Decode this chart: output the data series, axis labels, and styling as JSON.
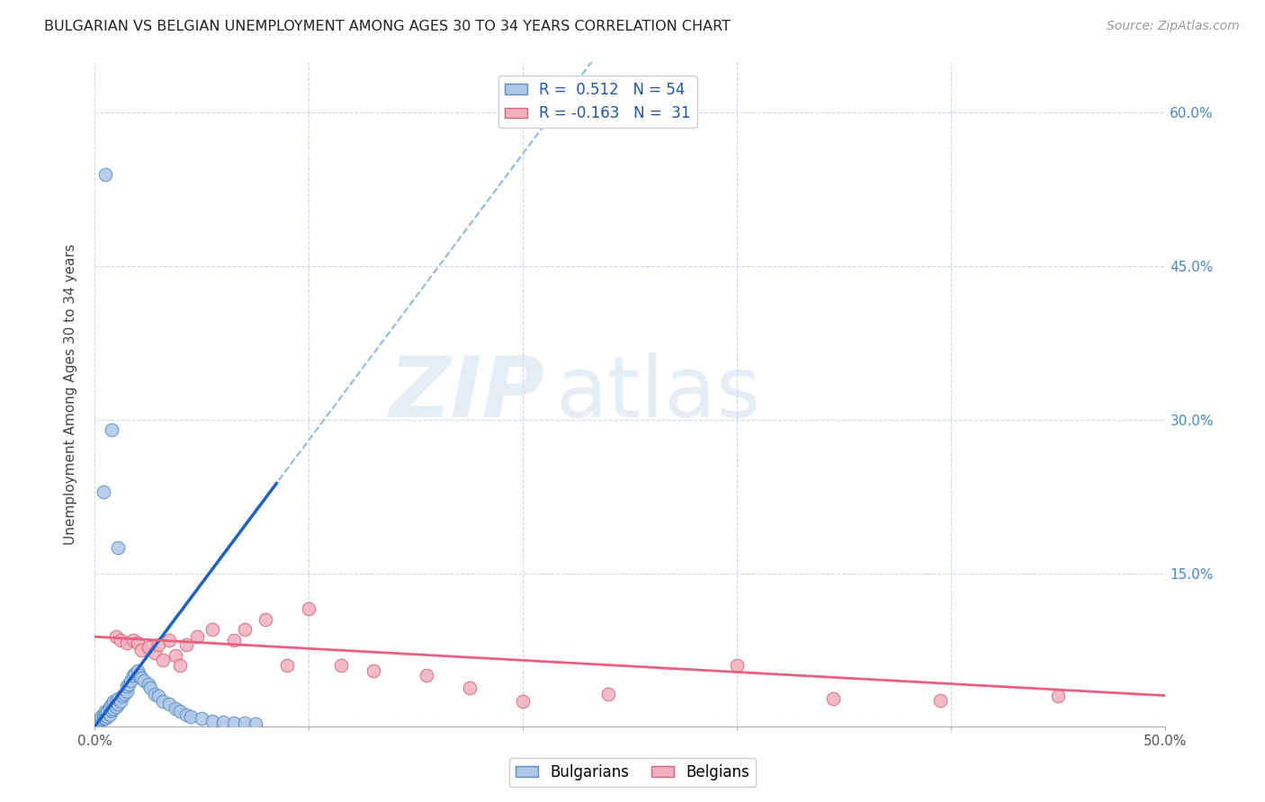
{
  "title": "BULGARIAN VS BELGIAN UNEMPLOYMENT AMONG AGES 30 TO 34 YEARS CORRELATION CHART",
  "source": "Source: ZipAtlas.com",
  "ylabel": "Unemployment Among Ages 30 to 34 years",
  "watermark_zip": "ZIP",
  "watermark_atlas": "atlas",
  "bg_color": "#ffffff",
  "grid_color": "#c8d8e8",
  "xlim": [
    0.0,
    0.5
  ],
  "ylim": [
    0.0,
    0.65
  ],
  "xticks": [
    0.0,
    0.1,
    0.2,
    0.3,
    0.4,
    0.5
  ],
  "yticks": [
    0.0,
    0.15,
    0.3,
    0.45,
    0.6
  ],
  "right_ytick_labels": [
    "",
    "15.0%",
    "30.0%",
    "45.0%",
    "60.0%"
  ],
  "bottom_xtick_labels_show": [
    "0.0%",
    "50.0%"
  ],
  "legend_r1": "R =  0.512",
  "legend_n1": "N = 54",
  "legend_r2": "R = -0.163",
  "legend_n2": "N =  31",
  "bulgarian_color": "#aec6e8",
  "belgian_color": "#f2afc0",
  "bulgarian_edge": "#5a8fc0",
  "belgian_edge": "#d06878",
  "trend_blue_solid": "#2060c0",
  "trend_blue_dashed": "#90b8e0",
  "trend_pink_solid": "#e86080",
  "bulgarian_x": [
    0.002,
    0.003,
    0.003,
    0.004,
    0.004,
    0.005,
    0.005,
    0.005,
    0.006,
    0.006,
    0.007,
    0.007,
    0.007,
    0.008,
    0.008,
    0.009,
    0.009,
    0.01,
    0.01,
    0.011,
    0.011,
    0.012,
    0.013,
    0.014,
    0.015,
    0.015,
    0.016,
    0.017,
    0.018,
    0.019,
    0.02,
    0.021,
    0.022,
    0.023,
    0.025,
    0.026,
    0.028,
    0.03,
    0.032,
    0.035,
    0.038,
    0.04,
    0.043,
    0.045,
    0.05,
    0.055,
    0.06,
    0.065,
    0.07,
    0.075,
    0.005,
    0.008,
    0.011,
    0.004
  ],
  "bulgarian_y": [
    0.005,
    0.007,
    0.01,
    0.008,
    0.012,
    0.008,
    0.012,
    0.015,
    0.01,
    0.015,
    0.012,
    0.018,
    0.02,
    0.016,
    0.022,
    0.018,
    0.025,
    0.02,
    0.025,
    0.022,
    0.028,
    0.025,
    0.03,
    0.032,
    0.035,
    0.04,
    0.042,
    0.045,
    0.05,
    0.052,
    0.055,
    0.05,
    0.048,
    0.045,
    0.042,
    0.038,
    0.032,
    0.03,
    0.025,
    0.022,
    0.018,
    0.015,
    0.012,
    0.01,
    0.008,
    0.006,
    0.005,
    0.004,
    0.004,
    0.003,
    0.54,
    0.29,
    0.175,
    0.23
  ],
  "belgian_x": [
    0.01,
    0.012,
    0.015,
    0.018,
    0.02,
    0.022,
    0.025,
    0.028,
    0.03,
    0.032,
    0.035,
    0.038,
    0.04,
    0.043,
    0.048,
    0.055,
    0.065,
    0.07,
    0.08,
    0.09,
    0.1,
    0.115,
    0.13,
    0.155,
    0.175,
    0.2,
    0.24,
    0.3,
    0.345,
    0.395,
    0.45
  ],
  "belgian_y": [
    0.088,
    0.085,
    0.082,
    0.085,
    0.082,
    0.075,
    0.078,
    0.072,
    0.08,
    0.065,
    0.085,
    0.07,
    0.06,
    0.08,
    0.088,
    0.095,
    0.085,
    0.095,
    0.105,
    0.06,
    0.115,
    0.06,
    0.055,
    0.05,
    0.038,
    0.025,
    0.032,
    0.06,
    0.028,
    0.026,
    0.03
  ]
}
